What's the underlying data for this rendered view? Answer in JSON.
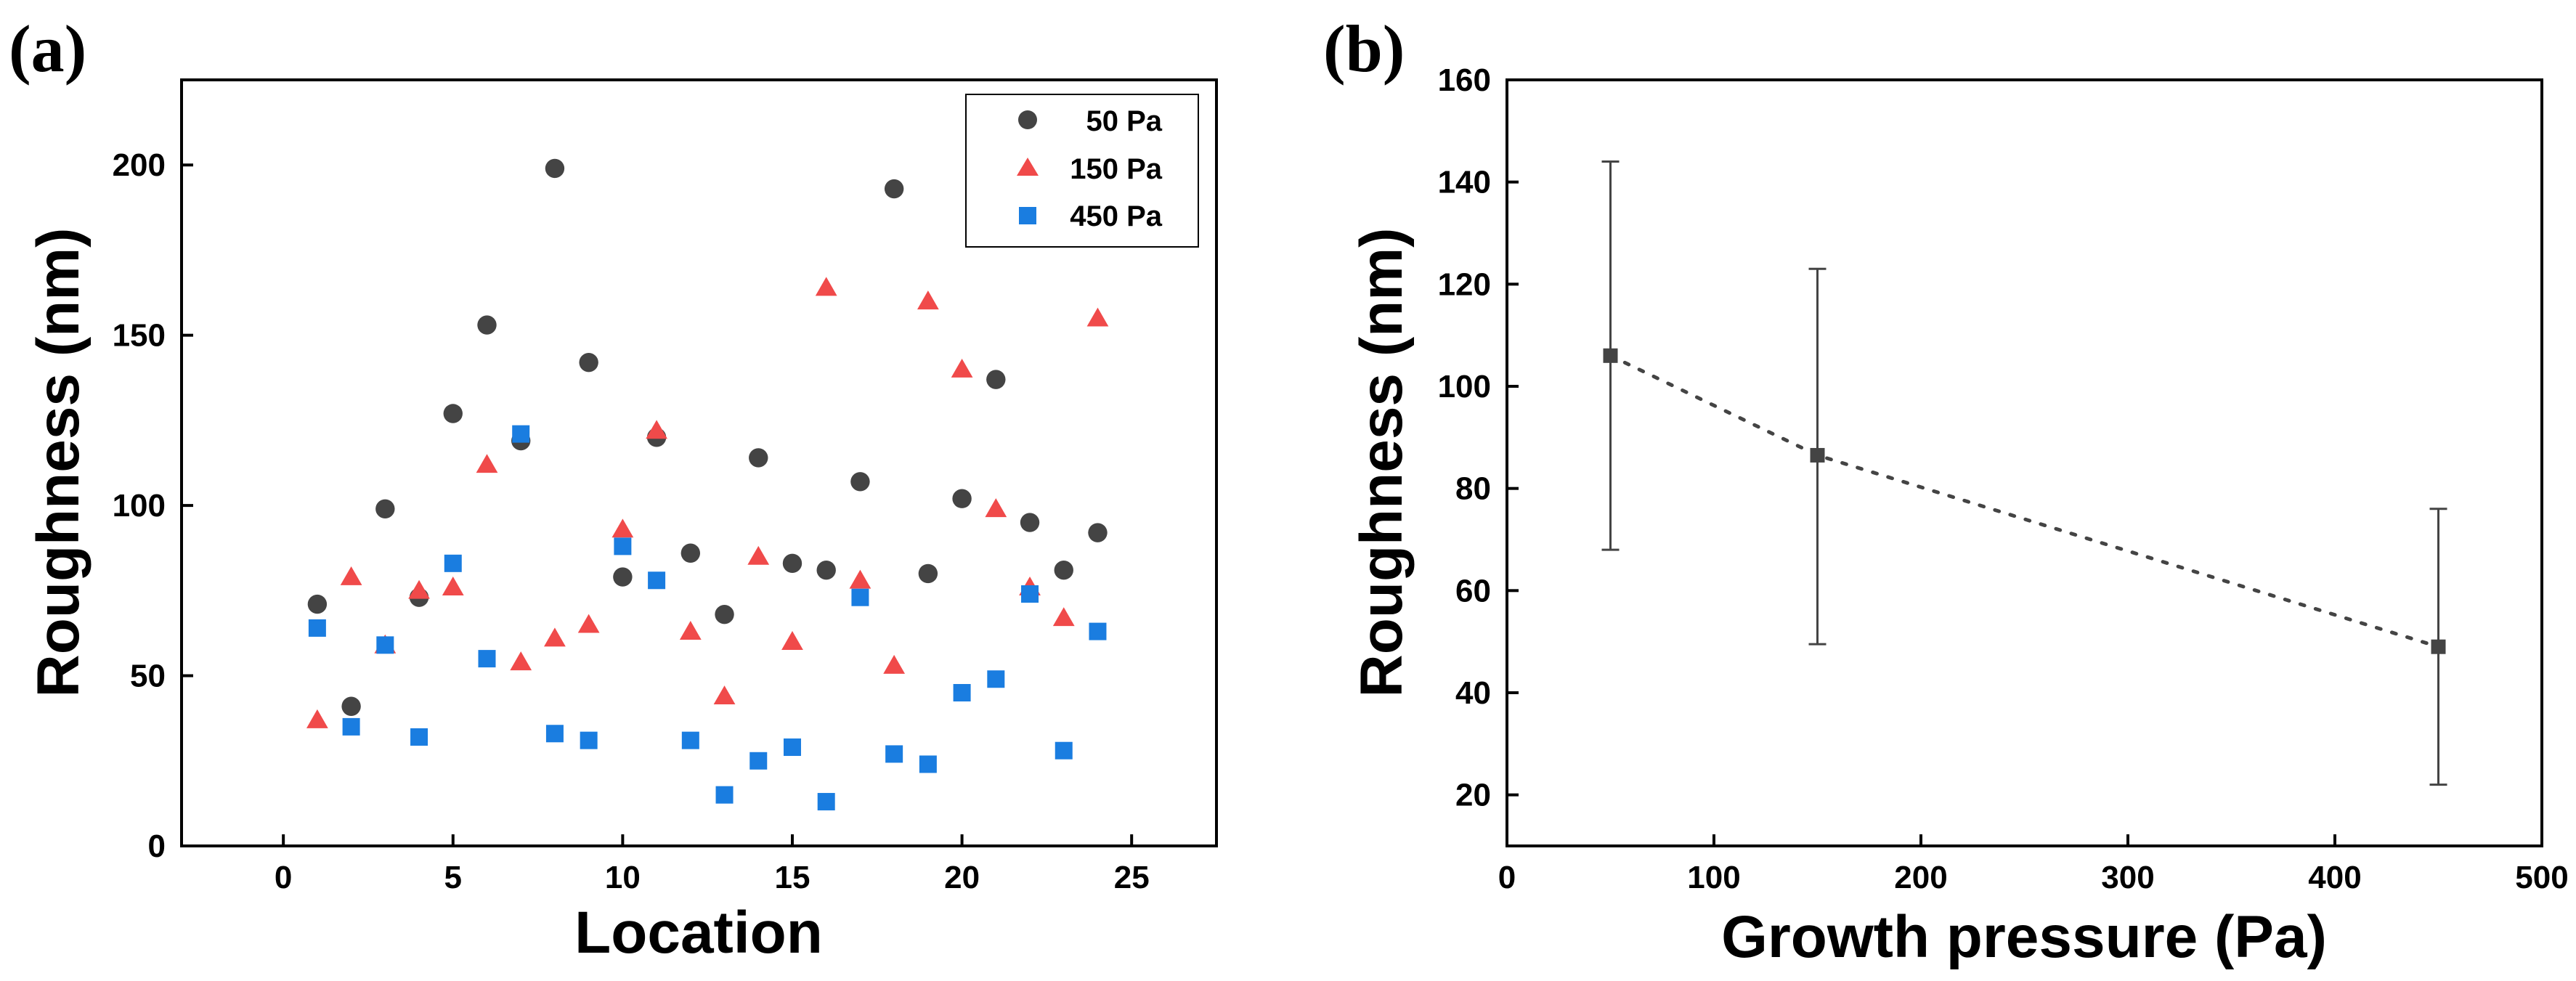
{
  "chart_data": [
    {
      "panel_label": "(a)",
      "type": "scatter",
      "xlabel": "Location",
      "ylabel": "Roughness (nm)",
      "xlim": [
        -3,
        27.5
      ],
      "ylim": [
        0,
        225
      ],
      "xticks": [
        0,
        5,
        10,
        15,
        20,
        25
      ],
      "yticks": [
        0,
        50,
        100,
        150,
        200
      ],
      "legend_position": "top-right",
      "series": [
        {
          "name": "50 Pa",
          "marker": "circle",
          "color": "#444444",
          "x": [
            1,
            2,
            3,
            4,
            5,
            6,
            7,
            8,
            9,
            10,
            11,
            12,
            13,
            14,
            15,
            16,
            17,
            18,
            19,
            20,
            21,
            22,
            23,
            24
          ],
          "values": [
            71,
            41,
            99,
            73,
            127,
            153,
            119,
            199,
            142,
            79,
            120,
            86,
            68,
            114,
            83,
            81,
            107,
            193,
            80,
            102,
            137,
            95,
            81,
            92
          ]
        },
        {
          "name": "150 Pa",
          "marker": "triangle",
          "color": "#f04a4a",
          "x": [
            1,
            2,
            3,
            4,
            5,
            6,
            7,
            8,
            9,
            10,
            11,
            12,
            13,
            14,
            15,
            16,
            17,
            18,
            19,
            20,
            21,
            22,
            23,
            24
          ],
          "values": [
            37,
            79,
            59,
            75,
            76,
            112,
            54,
            61,
            65,
            93,
            122,
            63,
            44,
            85,
            60,
            164,
            78,
            53,
            160,
            140,
            99,
            76,
            67,
            155
          ]
        },
        {
          "name": "450 Pa",
          "marker": "square",
          "color": "#1a7de0",
          "x": [
            1,
            2,
            3,
            4,
            5,
            6,
            7,
            8,
            9,
            10,
            11,
            12,
            13,
            14,
            15,
            16,
            17,
            18,
            19,
            20,
            21,
            22,
            23,
            24
          ],
          "values": [
            64,
            35,
            59,
            32,
            83,
            55,
            121,
            33,
            31,
            88,
            78,
            31,
            15,
            25,
            29,
            13,
            73,
            27,
            24,
            45,
            49,
            74,
            28,
            63
          ]
        }
      ]
    },
    {
      "panel_label": "(b)",
      "type": "line",
      "xlabel": "Growth pressure (Pa)",
      "ylabel": "Roughness (nm)",
      "xlim": [
        0,
        500
      ],
      "ylim": [
        10,
        160
      ],
      "xticks": [
        0,
        100,
        200,
        300,
        400,
        500
      ],
      "yticks": [
        20,
        40,
        60,
        80,
        100,
        120,
        140,
        160
      ],
      "line_style": "dotted",
      "series": [
        {
          "name": "Roughness",
          "marker": "square",
          "color": "#444444",
          "x": [
            50,
            150,
            450
          ],
          "values": [
            106,
            86.5,
            49
          ],
          "error_low": [
            68,
            49.5,
            22
          ],
          "error_high": [
            144,
            123,
            76
          ]
        }
      ]
    }
  ]
}
